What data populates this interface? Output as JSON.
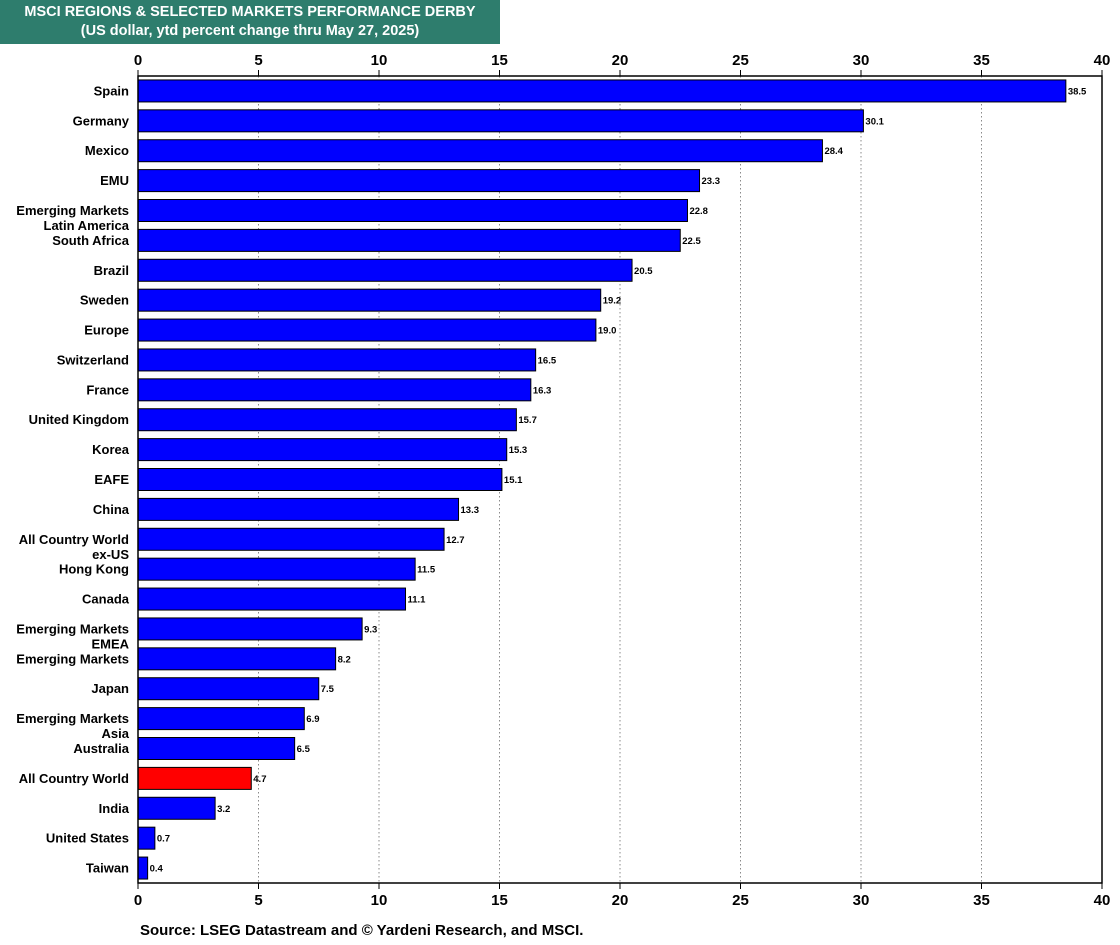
{
  "title_line1": "MSCI REGIONS & SELECTED MARKETS PERFORMANCE DERBY",
  "title_line2": "(US dollar, ytd percent change thru May 27, 2025)",
  "source": "Source: LSEG Datastream and © Yardeni Research, and MSCI.",
  "colors": {
    "bar": "#0000ff",
    "highlight": "#ff0000",
    "title_bg": "#2e7d6d"
  },
  "chart_data": {
    "type": "bar",
    "orientation": "horizontal",
    "title": "MSCI REGIONS & SELECTED MARKETS PERFORMANCE DERBY",
    "subtitle": "(US dollar, ytd percent change thru May 27, 2025)",
    "xlabel": "",
    "ylabel": "",
    "xlim": [
      0,
      40
    ],
    "xticks": [
      0,
      5,
      10,
      15,
      20,
      25,
      30,
      35,
      40
    ],
    "grid": "vertical dotted",
    "axis_labels_top_and_bottom": true,
    "highlight_category": "All Country World",
    "categories": [
      "Spain",
      "Germany",
      "Mexico",
      "EMU",
      "Emerging Markets Latin America",
      "South Africa",
      "Brazil",
      "Sweden",
      "Europe",
      "Switzerland",
      "France",
      "United Kingdom",
      "Korea",
      "EAFE",
      "China",
      "All Country World ex-US",
      "Hong Kong",
      "Canada",
      "Emerging Markets EMEA",
      "Emerging Markets",
      "Japan",
      "Emerging Markets Asia",
      "Australia",
      "All Country World",
      "India",
      "United States",
      "Taiwan"
    ],
    "category_lines": [
      [
        "Spain"
      ],
      [
        "Germany"
      ],
      [
        "Mexico"
      ],
      [
        "EMU"
      ],
      [
        "Emerging Markets",
        "Latin America"
      ],
      [
        "South Africa"
      ],
      [
        "Brazil"
      ],
      [
        "Sweden"
      ],
      [
        "Europe"
      ],
      [
        "Switzerland"
      ],
      [
        "France"
      ],
      [
        "United Kingdom"
      ],
      [
        "Korea"
      ],
      [
        "EAFE"
      ],
      [
        "China"
      ],
      [
        "All Country World",
        "ex-US"
      ],
      [
        "Hong Kong"
      ],
      [
        "Canada"
      ],
      [
        "Emerging Markets",
        "EMEA"
      ],
      [
        "Emerging Markets"
      ],
      [
        "Japan"
      ],
      [
        "Emerging Markets",
        "Asia"
      ],
      [
        "Australia"
      ],
      [
        "All Country World"
      ],
      [
        "India"
      ],
      [
        "United States"
      ],
      [
        "Taiwan"
      ]
    ],
    "values": [
      38.5,
      30.1,
      28.4,
      23.3,
      22.8,
      22.5,
      20.5,
      19.2,
      19.0,
      16.5,
      16.3,
      15.7,
      15.3,
      15.1,
      13.3,
      12.7,
      11.5,
      11.1,
      9.3,
      8.2,
      7.5,
      6.9,
      6.5,
      4.7,
      3.2,
      0.7,
      0.4
    ],
    "value_labels": [
      "38.5",
      "30.1",
      "28.4",
      "23.3",
      "22.8",
      "22.5",
      "20.5",
      "19.2",
      "19.0",
      "16.5",
      "16.3",
      "15.7",
      "15.3",
      "15.1",
      "13.3",
      "12.7",
      "11.5",
      "11.1",
      "9.3",
      "8.2",
      "7.5",
      "6.9",
      "6.5",
      "4.7",
      "3.2",
      "0.7",
      "0.4"
    ]
  }
}
